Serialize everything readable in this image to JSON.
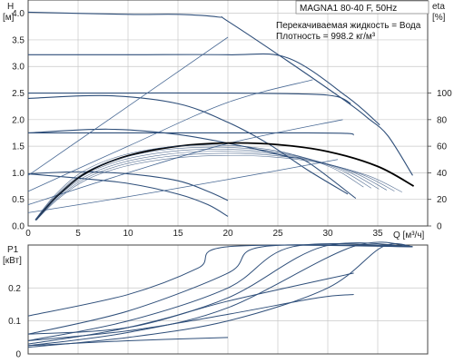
{
  "title_box": "MAGNA1 80-40 F, 50Hz",
  "fluid_line": "Перекачиваемая жидкость = Вода",
  "density_line": "Плотность = 998.2 кг/м³",
  "colors": {
    "grid": "#c8c8c8",
    "axis": "#444444",
    "curve": "#2f4f7a",
    "eff": "#4a6a95",
    "best": "#000000"
  },
  "chart_data": [
    {
      "type": "line",
      "title": "",
      "xlabel": "Q [м³/ч]",
      "ylabel": "H [м]",
      "y2label": "eta [%]",
      "xlim": [
        0,
        40
      ],
      "ylim": [
        0,
        4.25
      ],
      "y2lim": [
        0,
        170
      ],
      "x_ticks": [
        "0",
        "5",
        "10",
        "15",
        "20",
        "25",
        "30",
        "35"
      ],
      "y_ticks": [
        "0.0",
        "0.5",
        "1.0",
        "1.5",
        "2.0",
        "2.5",
        "3.0",
        "3.5",
        "4.0"
      ],
      "y2_ticks": [
        "0",
        "20",
        "40",
        "60",
        "80",
        "100"
      ],
      "grid": true,
      "series": [
        {
          "kind": "hq",
          "x": [
            0,
            10,
            15,
            19,
            20,
            26,
            32,
            34,
            36,
            38.5
          ],
          "y": [
            4.02,
            3.98,
            3.98,
            3.93,
            3.85,
            3.1,
            2.32,
            2.03,
            1.7,
            0.95
          ]
        },
        {
          "kind": "hq",
          "x": [
            0,
            10,
            20,
            26,
            32,
            35.2
          ],
          "y": [
            3.22,
            3.22,
            3.22,
            3.16,
            2.42,
            1.9
          ]
        },
        {
          "kind": "hq",
          "x": [
            0,
            10,
            20,
            28,
            31,
            32.3
          ],
          "y": [
            2.5,
            2.5,
            2.5,
            2.48,
            2.43,
            2.3
          ]
        },
        {
          "kind": "hq",
          "x": [
            0,
            10,
            20,
            28,
            32,
            32.6
          ],
          "y": [
            1.75,
            1.75,
            1.75,
            1.75,
            1.74,
            1.71
          ]
        },
        {
          "kind": "hq",
          "x": [
            0,
            8,
            15,
            20,
            24,
            28,
            32
          ],
          "y": [
            2.4,
            2.45,
            2.3,
            1.95,
            1.55,
            1.05,
            0.6
          ]
        },
        {
          "kind": "hq",
          "x": [
            0,
            8,
            15,
            22,
            26,
            28,
            32.8
          ],
          "y": [
            1.75,
            1.82,
            1.72,
            1.48,
            1.3,
            1.2,
            0.52
          ]
        },
        {
          "kind": "hq",
          "x": [
            0,
            5,
            10,
            15,
            18,
            20
          ],
          "y": [
            0.98,
            1.02,
            0.98,
            0.85,
            0.65,
            0.48
          ]
        },
        {
          "kind": "hq",
          "x": [
            0,
            5,
            10,
            15,
            18,
            20
          ],
          "y": [
            0.98,
            0.9,
            0.8,
            0.6,
            0.4,
            0.18
          ]
        },
        {
          "kind": "eta",
          "x": [
            0,
            10,
            20
          ],
          "y": [
            38,
            90,
            142
          ]
        },
        {
          "kind": "eta",
          "x": [
            0,
            10,
            20,
            28.5
          ],
          "y": [
            26,
            60,
            93,
            110
          ]
        },
        {
          "kind": "eta",
          "x": [
            0,
            10,
            20,
            31.5
          ],
          "y": [
            16,
            40,
            62,
            80
          ]
        },
        {
          "kind": "eta",
          "x": [
            0,
            10,
            20,
            31
          ],
          "y": [
            10,
            22,
            35,
            50
          ]
        },
        {
          "kind": "best",
          "x": [
            0.8,
            3,
            6,
            10,
            15,
            20,
            25,
            30,
            35,
            38.6
          ],
          "y": [
            0.12,
            0.58,
            1.02,
            1.32,
            1.5,
            1.56,
            1.53,
            1.4,
            1.12,
            0.75
          ]
        }
      ]
    },
    {
      "type": "line",
      "title": "",
      "xlabel": "",
      "ylabel": "P1 [кВт]",
      "xlim": [
        0,
        40
      ],
      "ylim": [
        0,
        0.33
      ],
      "y_ticks": [
        "0",
        "0.1",
        "0.2"
      ],
      "grid": true,
      "series": [
        {
          "x": [
            0,
            10,
            17,
            20,
            38.5
          ],
          "y": [
            0.115,
            0.18,
            0.26,
            0.325,
            0.325
          ]
        },
        {
          "x": [
            0,
            10,
            20,
            23.5,
            38.5
          ],
          "y": [
            0.06,
            0.13,
            0.245,
            0.325,
            0.325
          ]
        },
        {
          "x": [
            0,
            10,
            20,
            26.5,
            38.5
          ],
          "y": [
            0.04,
            0.1,
            0.2,
            0.325,
            0.325
          ]
        },
        {
          "x": [
            0,
            10,
            20,
            29.5,
            38.5
          ],
          "y": [
            0.03,
            0.08,
            0.17,
            0.325,
            0.325
          ]
        },
        {
          "x": [
            0,
            10,
            20,
            32.5,
            38.5
          ],
          "y": [
            0.025,
            0.065,
            0.14,
            0.325,
            0.325
          ]
        },
        {
          "x": [
            0,
            10,
            20,
            30,
            35.5,
            38.5
          ],
          "y": [
            0.02,
            0.05,
            0.1,
            0.2,
            0.325,
            0.325
          ]
        },
        {
          "x": [
            0,
            10,
            20,
            32.6
          ],
          "y": [
            0.06,
            0.08,
            0.16,
            0.245
          ]
        },
        {
          "x": [
            0,
            10,
            20,
            29,
            32.6
          ],
          "y": [
            0.04,
            0.07,
            0.12,
            0.17,
            0.18
          ]
        },
        {
          "x": [
            0,
            10,
            20
          ],
          "y": [
            0.025,
            0.04,
            0.05
          ]
        }
      ]
    }
  ]
}
